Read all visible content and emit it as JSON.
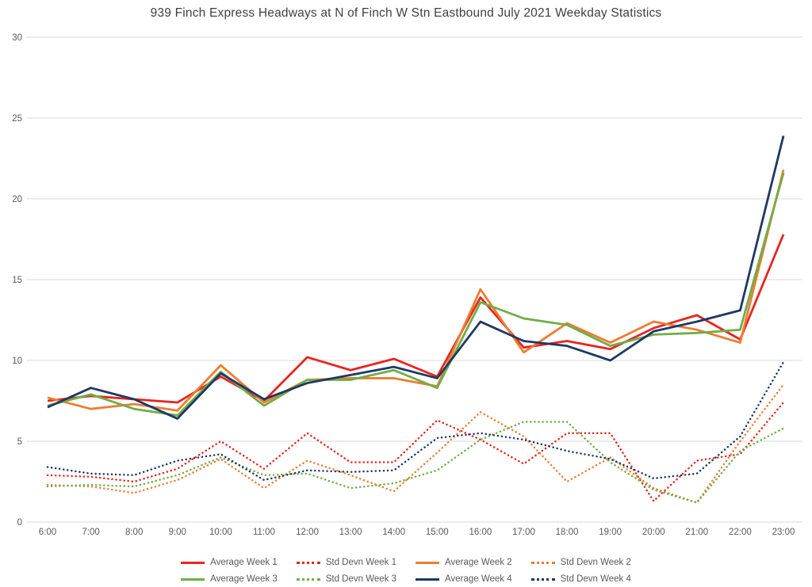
{
  "title": "939 Finch Express Headways at N of Finch W Stn Eastbound July 2021 Weekday Statistics",
  "colors": {
    "week1": "#e8251f",
    "week2": "#ed7d31",
    "week3": "#70ad47",
    "week4": "#1f3864",
    "title_text": "#404040",
    "axis_text": "#595959",
    "gridline": "#d9d9d9",
    "background": "#ffffff"
  },
  "chart_data": {
    "type": "line",
    "title": "939 Finch Express Headways at N of Finch W Stn Eastbound July 2021 Weekday Statistics",
    "x": [
      "6:00",
      "7:00",
      "8:00",
      "9:00",
      "10:00",
      "11:00",
      "12:00",
      "13:00",
      "14:00",
      "15:00",
      "16:00",
      "17:00",
      "18:00",
      "19:00",
      "20:00",
      "21:00",
      "22:00",
      "23:00"
    ],
    "xlabel": "",
    "ylabel": "",
    "ylim": [
      0,
      30
    ],
    "yticks": [
      0,
      5,
      10,
      15,
      20,
      25,
      30
    ],
    "grid": true,
    "legend_position": "bottom",
    "legend_rows": [
      [
        0,
        1,
        2,
        3
      ],
      [
        4,
        5,
        6,
        7
      ]
    ],
    "series": [
      {
        "name": "Average Week 1",
        "color": "#e8251f",
        "style": "solid",
        "values": [
          7.5,
          7.8,
          7.6,
          7.4,
          9.0,
          7.5,
          10.2,
          9.4,
          10.1,
          9.0,
          13.9,
          10.8,
          11.2,
          10.7,
          12.0,
          12.8,
          11.3,
          17.8
        ]
      },
      {
        "name": "Std Devn Week 1",
        "color": "#e8251f",
        "style": "dotted",
        "values": [
          2.9,
          2.8,
          2.5,
          3.3,
          5.0,
          3.3,
          5.5,
          3.7,
          3.7,
          6.3,
          5.1,
          3.6,
          5.5,
          5.5,
          1.3,
          3.8,
          4.2,
          7.4
        ]
      },
      {
        "name": "Average Week 2",
        "color": "#ed7d31",
        "style": "solid",
        "values": [
          7.7,
          7.0,
          7.3,
          6.9,
          9.7,
          7.4,
          8.8,
          8.9,
          8.9,
          8.4,
          14.4,
          10.5,
          12.3,
          11.1,
          12.4,
          11.9,
          11.1,
          21.8
        ]
      },
      {
        "name": "Std Devn Week 2",
        "color": "#ed7d31",
        "style": "dotted",
        "values": [
          2.3,
          2.2,
          1.8,
          2.6,
          3.9,
          2.1,
          3.8,
          2.9,
          1.9,
          4.3,
          6.8,
          5.3,
          2.5,
          4.0,
          2.1,
          1.2,
          5.0,
          8.5
        ]
      },
      {
        "name": "Average Week 3",
        "color": "#70ad47",
        "style": "solid",
        "values": [
          7.2,
          7.9,
          7.0,
          6.6,
          9.3,
          7.2,
          8.8,
          8.8,
          9.4,
          8.3,
          13.6,
          12.6,
          12.2,
          10.9,
          11.6,
          11.7,
          11.9,
          21.6
        ]
      },
      {
        "name": "Std Devn Week 3",
        "color": "#70ad47",
        "style": "dotted",
        "values": [
          2.2,
          2.3,
          2.2,
          2.9,
          4.0,
          2.9,
          3.0,
          2.1,
          2.4,
          3.2,
          5.1,
          6.2,
          6.2,
          3.7,
          2.0,
          1.2,
          4.4,
          5.8
        ]
      },
      {
        "name": "Average Week 4",
        "color": "#1f3864",
        "style": "solid",
        "values": [
          7.1,
          8.3,
          7.6,
          6.4,
          9.2,
          7.6,
          8.6,
          9.1,
          9.6,
          8.9,
          12.4,
          11.2,
          10.9,
          10.0,
          11.8,
          12.4,
          13.1,
          23.9
        ]
      },
      {
        "name": "Std Devn Week 4",
        "color": "#1f3864",
        "style": "dotted",
        "values": [
          3.4,
          3.0,
          2.9,
          3.8,
          4.2,
          2.6,
          3.2,
          3.1,
          3.2,
          5.2,
          5.5,
          5.1,
          4.4,
          3.9,
          2.7,
          3.0,
          5.3,
          9.9
        ]
      }
    ]
  }
}
